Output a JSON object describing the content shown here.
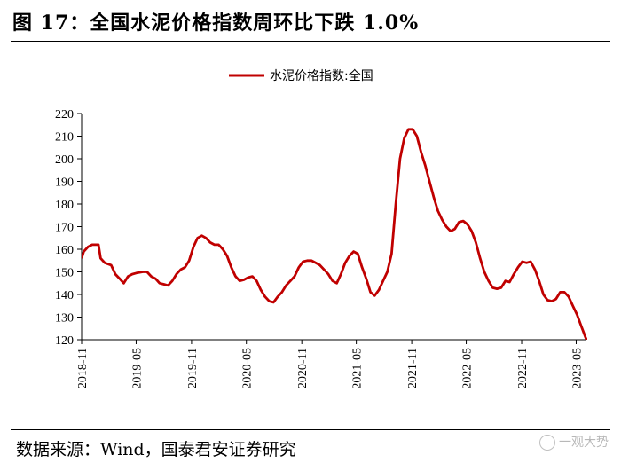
{
  "figure": {
    "title": "图 17：全国水泥价格指数周环比下跌 1.0%",
    "source": "数据来源：Wind，国泰君安证券研究",
    "watermark": "一观大势"
  },
  "colors": {
    "line": "#c00000",
    "axis": "#000000"
  },
  "chart_data": {
    "type": "line",
    "title": "",
    "legend_position": "top-center",
    "grid": false,
    "ylim": [
      120,
      220
    ],
    "yticks": [
      120,
      130,
      140,
      150,
      160,
      170,
      180,
      190,
      200,
      210,
      220
    ],
    "xlim": [
      "2018-11",
      "2023-06"
    ],
    "xticks": [
      "2018-11",
      "2019-05",
      "2019-11",
      "2020-05",
      "2020-11",
      "2021-05",
      "2021-11",
      "2022-05",
      "2022-11",
      "2023-05"
    ],
    "series": [
      {
        "name": "水泥价格指数:全国",
        "points": [
          [
            "2018-11-01",
            156
          ],
          [
            "2018-11-08",
            159
          ],
          [
            "2018-11-22",
            161
          ],
          [
            "2018-12-06",
            162
          ],
          [
            "2018-12-27",
            162
          ],
          [
            "2019-01-03",
            156
          ],
          [
            "2019-01-17",
            154
          ],
          [
            "2019-02-07",
            153
          ],
          [
            "2019-02-21",
            149
          ],
          [
            "2019-03-07",
            147
          ],
          [
            "2019-03-21",
            145
          ],
          [
            "2019-04-04",
            148
          ],
          [
            "2019-04-18",
            149
          ],
          [
            "2019-05-02",
            149.5
          ],
          [
            "2019-05-23",
            150
          ],
          [
            "2019-06-06",
            150
          ],
          [
            "2019-06-20",
            148
          ],
          [
            "2019-07-04",
            147
          ],
          [
            "2019-07-18",
            145
          ],
          [
            "2019-08-01",
            144.5
          ],
          [
            "2019-08-15",
            144
          ],
          [
            "2019-08-29",
            146
          ],
          [
            "2019-09-12",
            149
          ],
          [
            "2019-09-26",
            151
          ],
          [
            "2019-10-10",
            152
          ],
          [
            "2019-10-24",
            155
          ],
          [
            "2019-11-07",
            161
          ],
          [
            "2019-11-21",
            165
          ],
          [
            "2019-12-05",
            166
          ],
          [
            "2019-12-19",
            165
          ],
          [
            "2020-01-02",
            163
          ],
          [
            "2020-01-16",
            162
          ],
          [
            "2020-01-30",
            162
          ],
          [
            "2020-02-13",
            160
          ],
          [
            "2020-02-27",
            157
          ],
          [
            "2020-03-12",
            152
          ],
          [
            "2020-03-26",
            148
          ],
          [
            "2020-04-09",
            146
          ],
          [
            "2020-04-23",
            146.5
          ],
          [
            "2020-05-07",
            147.5
          ],
          [
            "2020-05-21",
            148
          ],
          [
            "2020-06-04",
            146
          ],
          [
            "2020-06-18",
            142
          ],
          [
            "2020-07-02",
            139
          ],
          [
            "2020-07-16",
            137
          ],
          [
            "2020-07-30",
            136.5
          ],
          [
            "2020-08-13",
            139
          ],
          [
            "2020-08-27",
            141
          ],
          [
            "2020-09-10",
            144
          ],
          [
            "2020-09-24",
            146
          ],
          [
            "2020-10-08",
            148
          ],
          [
            "2020-10-22",
            152
          ],
          [
            "2020-11-05",
            154.5
          ],
          [
            "2020-11-19",
            155
          ],
          [
            "2020-12-03",
            155
          ],
          [
            "2020-12-17",
            154
          ],
          [
            "2020-12-31",
            153
          ],
          [
            "2021-01-14",
            151
          ],
          [
            "2021-01-28",
            149
          ],
          [
            "2021-02-11",
            146
          ],
          [
            "2021-02-25",
            145
          ],
          [
            "2021-03-11",
            149
          ],
          [
            "2021-03-25",
            154
          ],
          [
            "2021-04-08",
            157
          ],
          [
            "2021-04-22",
            159
          ],
          [
            "2021-05-06",
            158
          ],
          [
            "2021-05-20",
            152
          ],
          [
            "2021-06-03",
            147
          ],
          [
            "2021-06-17",
            141
          ],
          [
            "2021-07-01",
            139.5
          ],
          [
            "2021-07-15",
            142
          ],
          [
            "2021-07-29",
            146
          ],
          [
            "2021-08-12",
            150
          ],
          [
            "2021-08-26",
            158
          ],
          [
            "2021-09-09",
            180
          ],
          [
            "2021-09-23",
            200
          ],
          [
            "2021-10-07",
            209
          ],
          [
            "2021-10-21",
            213
          ],
          [
            "2021-11-04",
            213
          ],
          [
            "2021-11-18",
            210
          ],
          [
            "2021-12-02",
            203
          ],
          [
            "2021-12-16",
            197
          ],
          [
            "2021-12-30",
            190
          ],
          [
            "2022-01-13",
            183
          ],
          [
            "2022-01-27",
            177
          ],
          [
            "2022-02-10",
            173
          ],
          [
            "2022-02-24",
            170
          ],
          [
            "2022-03-10",
            168
          ],
          [
            "2022-03-24",
            169
          ],
          [
            "2022-04-07",
            172
          ],
          [
            "2022-04-21",
            172.5
          ],
          [
            "2022-05-05",
            171
          ],
          [
            "2022-05-19",
            168
          ],
          [
            "2022-06-02",
            163
          ],
          [
            "2022-06-16",
            156
          ],
          [
            "2022-06-30",
            150
          ],
          [
            "2022-07-14",
            146
          ],
          [
            "2022-07-28",
            143
          ],
          [
            "2022-08-11",
            142.5
          ],
          [
            "2022-08-25",
            143
          ],
          [
            "2022-09-08",
            146
          ],
          [
            "2022-09-22",
            145.5
          ],
          [
            "2022-10-06",
            149
          ],
          [
            "2022-10-20",
            152
          ],
          [
            "2022-11-03",
            154.5
          ],
          [
            "2022-11-17",
            154
          ],
          [
            "2022-12-01",
            154.5
          ],
          [
            "2022-12-15",
            151
          ],
          [
            "2022-12-29",
            146
          ],
          [
            "2023-01-12",
            140
          ],
          [
            "2023-01-26",
            137.5
          ],
          [
            "2023-02-09",
            137
          ],
          [
            "2023-02-23",
            138
          ],
          [
            "2023-03-09",
            141
          ],
          [
            "2023-03-23",
            141
          ],
          [
            "2023-04-06",
            139
          ],
          [
            "2023-04-20",
            135
          ],
          [
            "2023-05-04",
            131
          ],
          [
            "2023-05-18",
            126
          ],
          [
            "2023-06-01",
            121
          ],
          [
            "2023-06-08",
            119
          ]
        ]
      }
    ]
  }
}
